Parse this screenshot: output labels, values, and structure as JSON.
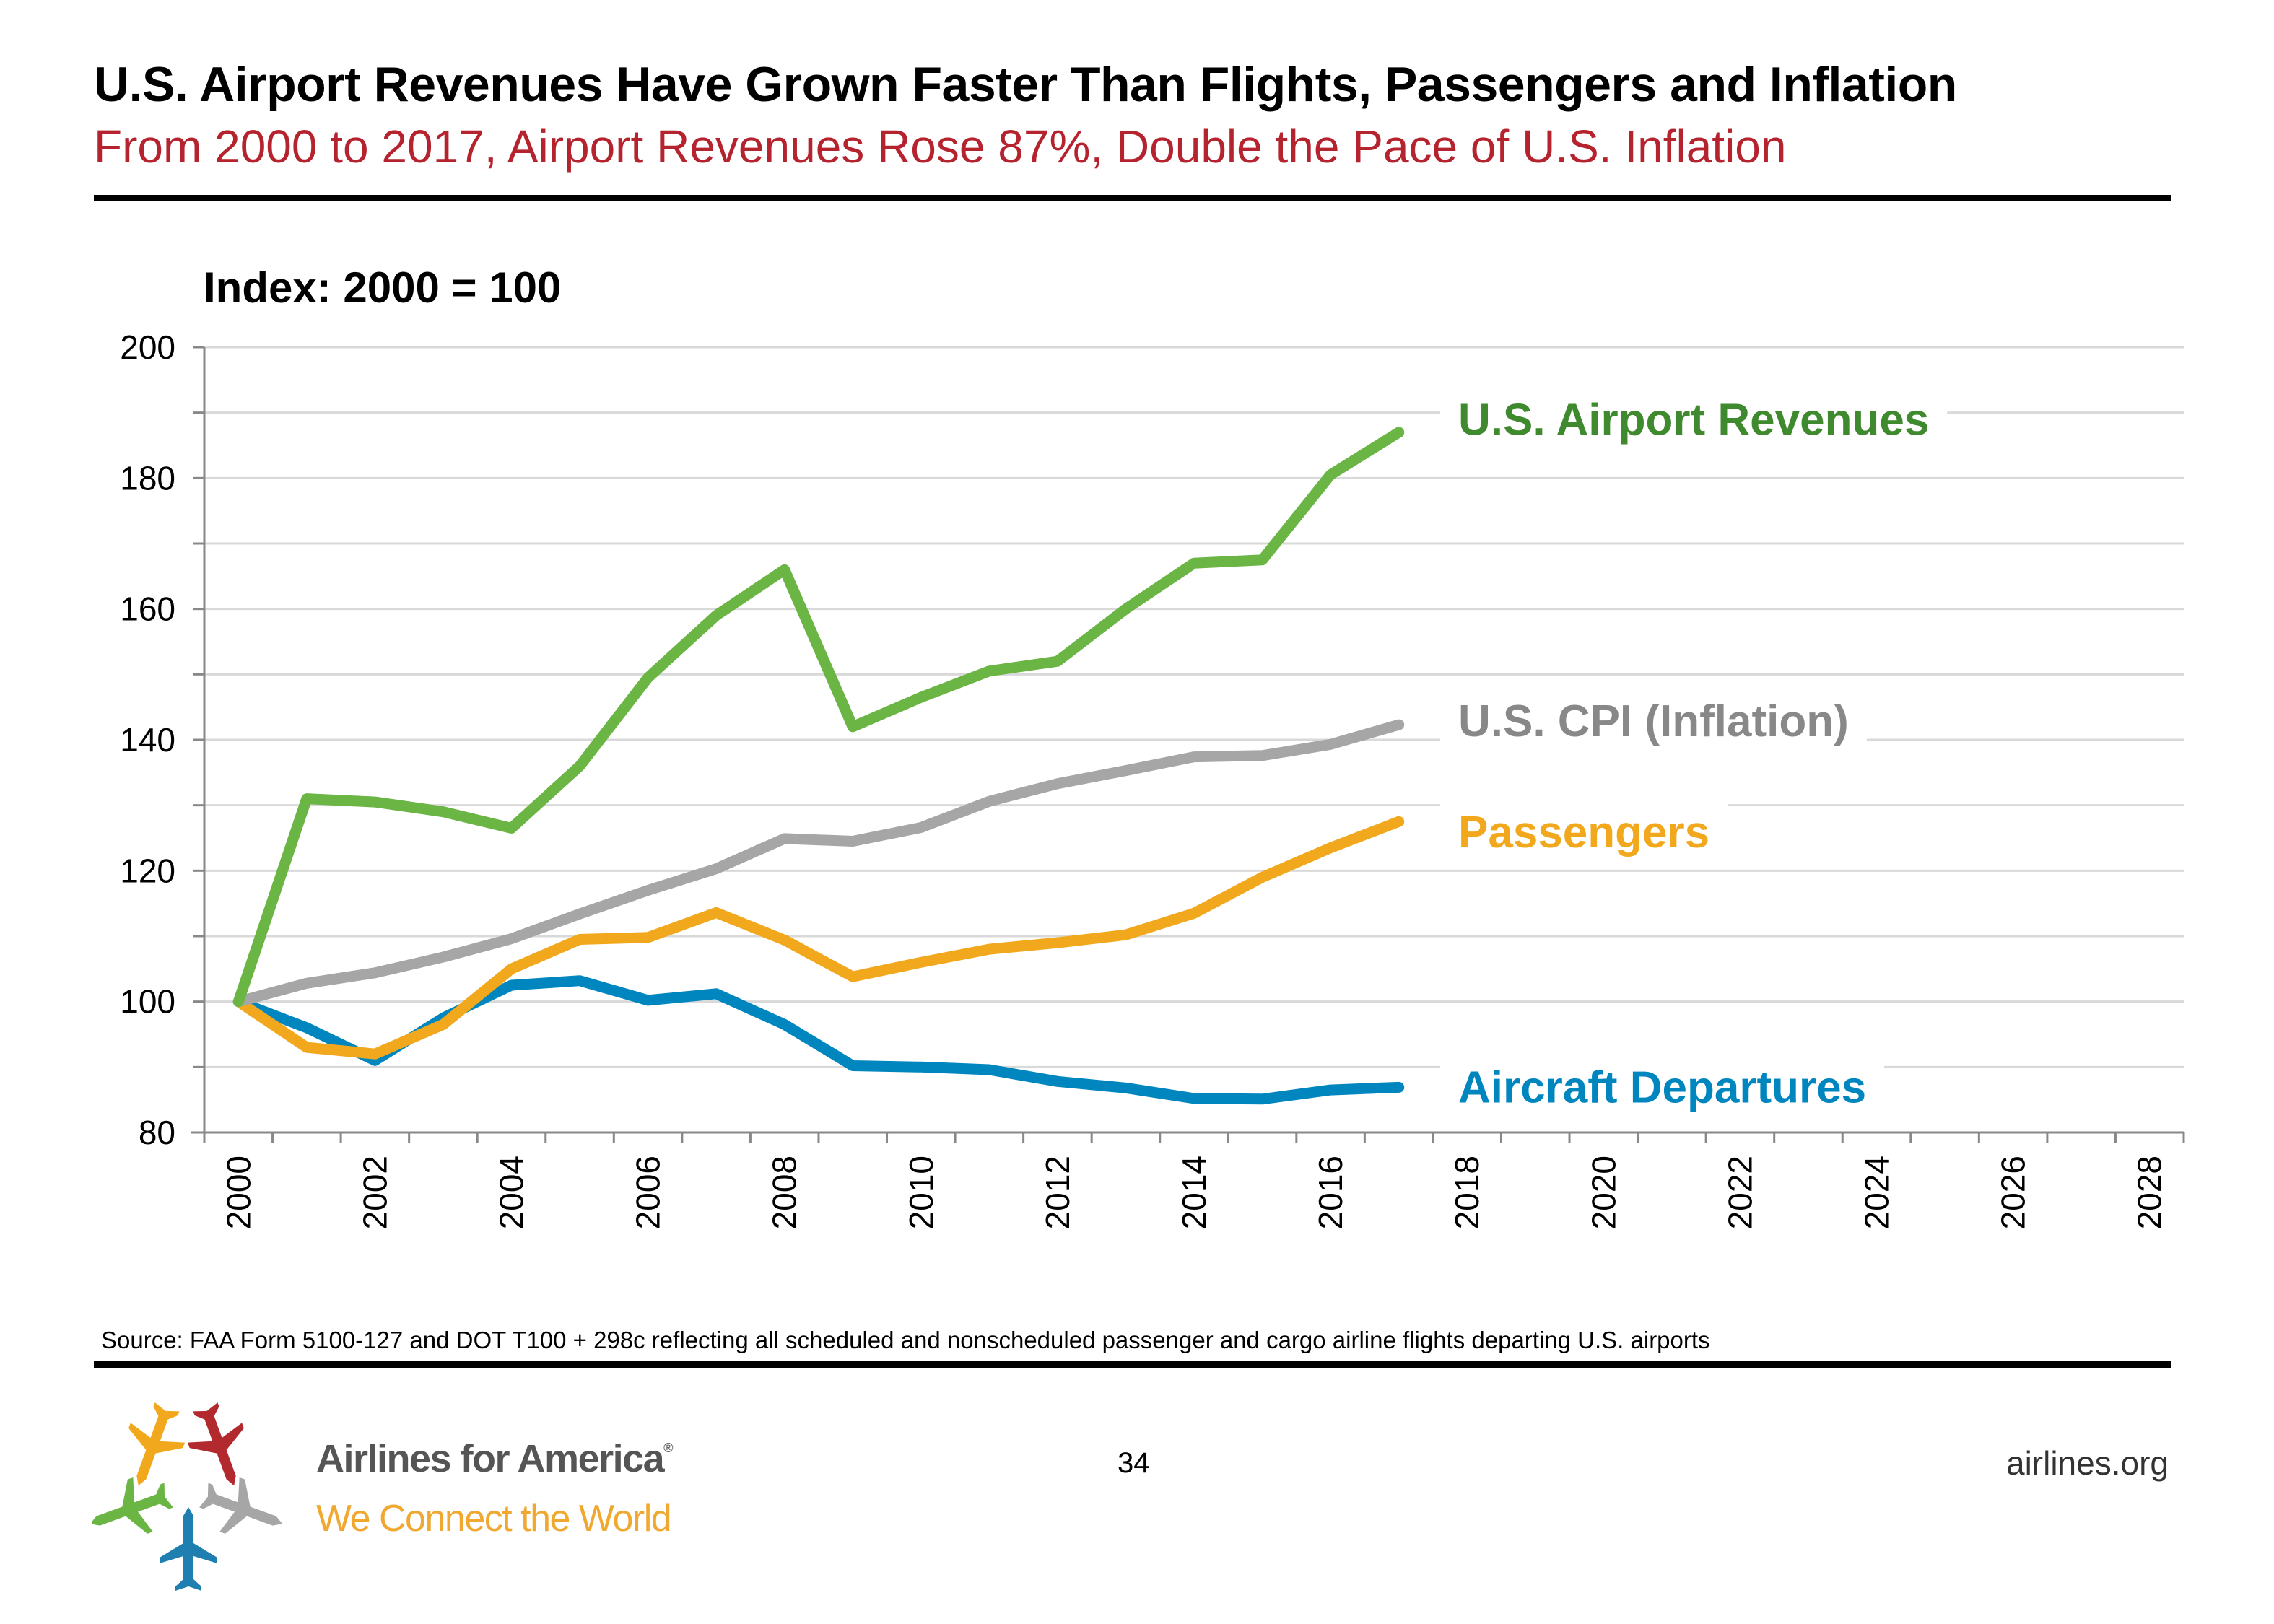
{
  "header": {
    "title": "U.S. Airport Revenues Have Grown Faster Than Flights, Passengers and Inflation",
    "subtitle": "From 2000 to 2017, Airport Revenues Rose 87%, Double the Pace of U.S. Inflation"
  },
  "colors": {
    "subtitle": "#b5232f",
    "revenues": "#6bb545",
    "revenues_label": "#3f8a2e",
    "cpi": "#a6a6a6",
    "cpi_label": "#888888",
    "passengers": "#f2a81d",
    "departures": "#0086bf"
  },
  "chart_data": {
    "type": "line",
    "title": "Index: 2000 = 100",
    "xlabel": "",
    "ylabel": "Index: 2000 = 100",
    "ylim": [
      80,
      200
    ],
    "yticks": [
      80,
      100,
      120,
      140,
      160,
      180,
      200
    ],
    "grid": true,
    "x_categories": [
      2000,
      2001,
      2002,
      2003,
      2004,
      2005,
      2006,
      2007,
      2008,
      2009,
      2010,
      2011,
      2012,
      2013,
      2014,
      2015,
      2016,
      2017,
      2018,
      2019,
      2020,
      2021,
      2022,
      2023,
      2024,
      2025,
      2026,
      2027,
      2028
    ],
    "x_tick_labels": [
      "2000",
      "2002",
      "2004",
      "2006",
      "2008",
      "2010",
      "2012",
      "2014",
      "2016",
      "2018",
      "2020",
      "2022",
      "2024",
      "2026",
      "2028"
    ],
    "legend_placement": "right (inline labels)",
    "series": [
      {
        "key": "revenues",
        "name": "U.S. Airport Revenues",
        "x": [
          2000,
          2001,
          2002,
          2003,
          2004,
          2005,
          2006,
          2007,
          2008,
          2009,
          2010,
          2011,
          2012,
          2013,
          2014,
          2015,
          2016,
          2017
        ],
        "values": [
          100,
          131,
          130.5,
          129,
          126.5,
          136,
          149.5,
          159,
          166,
          142,
          146.5,
          150.5,
          152,
          160,
          167,
          167.5,
          180.5,
          187
        ]
      },
      {
        "key": "cpi",
        "name": "U.S. CPI (Inflation)",
        "x": [
          2000,
          2001,
          2002,
          2003,
          2004,
          2005,
          2006,
          2007,
          2008,
          2009,
          2010,
          2011,
          2012,
          2013,
          2014,
          2015,
          2016,
          2017
        ],
        "values": [
          100,
          102.8,
          104.4,
          106.8,
          109.6,
          113.4,
          117,
          120.3,
          124.9,
          124.5,
          126.6,
          130.6,
          133.3,
          135.3,
          137.4,
          137.6,
          139.3,
          142.3
        ]
      },
      {
        "key": "passengers",
        "name": "Passengers",
        "x": [
          2000,
          2001,
          2002,
          2003,
          2004,
          2005,
          2006,
          2007,
          2008,
          2009,
          2010,
          2011,
          2012,
          2013,
          2014,
          2015,
          2016,
          2017
        ],
        "values": [
          100,
          93,
          92,
          96.5,
          105,
          109.5,
          109.8,
          113.6,
          109.4,
          103.8,
          106,
          108,
          109,
          110.2,
          113.5,
          119,
          123.5,
          127.5
        ]
      },
      {
        "key": "departures",
        "name": "Aircraft Departures",
        "x": [
          2000,
          2001,
          2002,
          2003,
          2004,
          2005,
          2006,
          2007,
          2008,
          2009,
          2010,
          2011,
          2012,
          2013,
          2014,
          2015,
          2016,
          2017
        ],
        "values": [
          100,
          96,
          91,
          97.5,
          102.5,
          103.2,
          100.2,
          101.2,
          96.5,
          90.2,
          90,
          89.6,
          87.8,
          86.8,
          85.2,
          85.1,
          86.5,
          86.9
        ]
      }
    ],
    "series_labels": [
      {
        "key": "revenues",
        "text": "U.S. Airport Revenues",
        "anchor_value": 189
      },
      {
        "key": "cpi",
        "text": "U.S. CPI (Inflation)",
        "anchor_value": 143
      },
      {
        "key": "passengers",
        "text": "Passengers",
        "anchor_value": 126
      },
      {
        "key": "departures",
        "text": "Aircraft Departures",
        "anchor_value": 87
      }
    ]
  },
  "footer": {
    "source": "Source: FAA Form 5100-127 and DOT T100 + 298c reflecting all scheduled and nonscheduled passenger and cargo airline flights departing U.S. airports",
    "page_number": "34",
    "website": "airlines.org",
    "brand_name": "Airlines for America",
    "brand_mark": "®",
    "tagline": "We Connect the World"
  }
}
